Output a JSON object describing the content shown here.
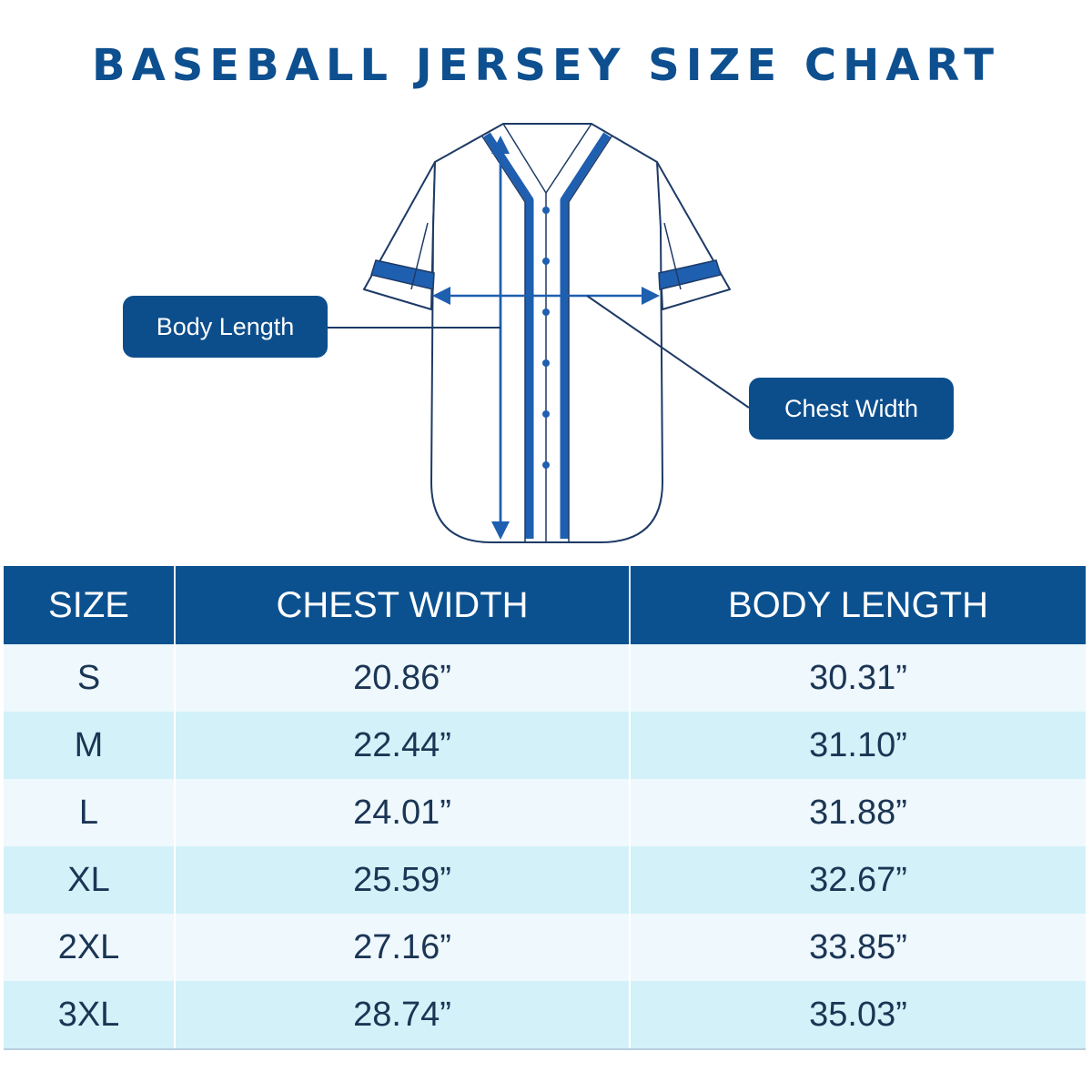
{
  "title": "BASEBALL JERSEY SIZE CHART",
  "callouts": {
    "body_length": "Body Length",
    "chest_width": "Chest Width"
  },
  "colors": {
    "navy": "#0c4e8c",
    "accent_blue": "#1f5fb0",
    "outline": "#1e3a66",
    "row_light": "#eef8fd",
    "row_cyan": "#d3f1f8"
  },
  "icons": [
    "jersey-illustration",
    "arrow-icon"
  ],
  "table": {
    "headers": [
      "SIZE",
      "CHEST WIDTH",
      "BODY LENGTH"
    ],
    "rows": [
      [
        "S",
        "20.86”",
        "30.31”"
      ],
      [
        "M",
        "22.44”",
        "31.10”"
      ],
      [
        "L",
        "24.01”",
        "31.88”"
      ],
      [
        "XL",
        "25.59”",
        "32.67”"
      ],
      [
        "2XL",
        "27.16”",
        "33.85”"
      ],
      [
        "3XL",
        "28.74”",
        "35.03”"
      ]
    ]
  }
}
